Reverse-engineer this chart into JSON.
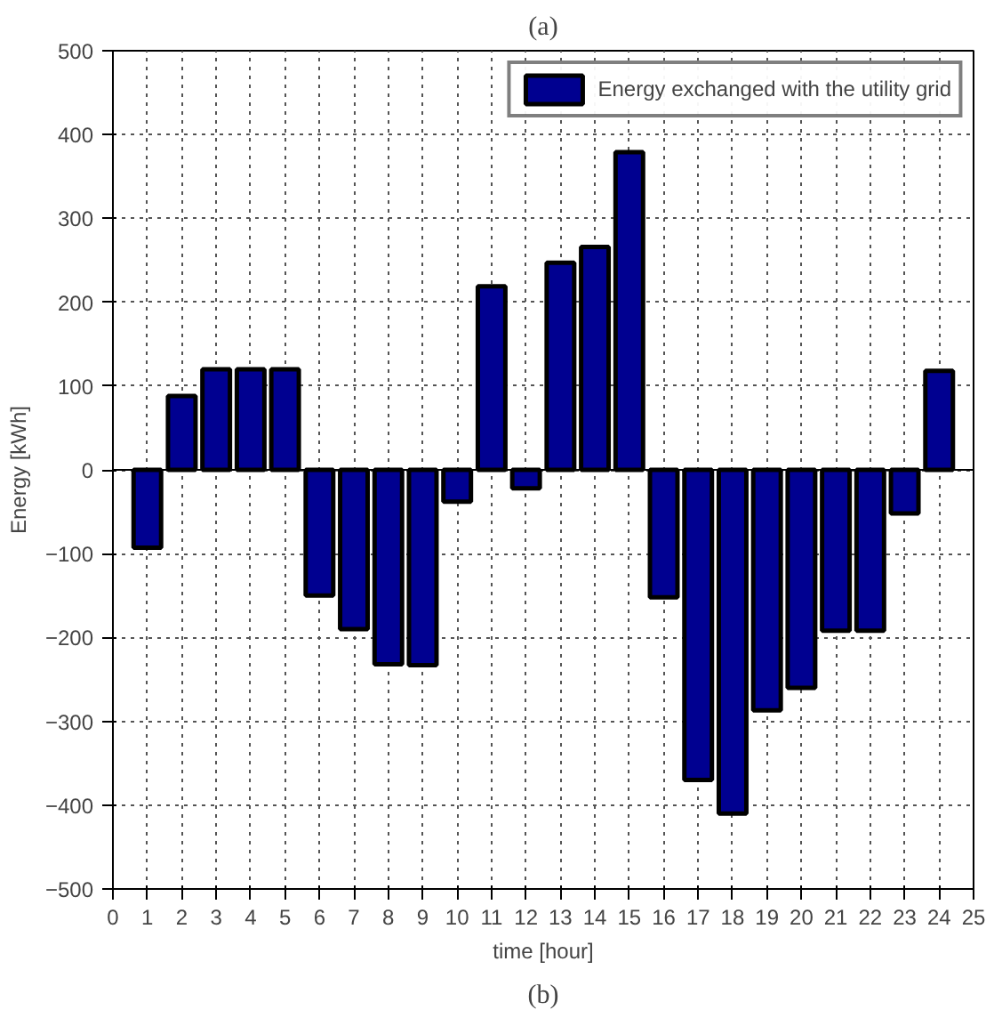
{
  "chart_data": {
    "type": "bar",
    "title": "(a)",
    "annotations": [
      "(b)"
    ],
    "xlabel": "time [hour]",
    "ylabel": "Energy [kWh]",
    "x": [
      1,
      2,
      3,
      4,
      5,
      6,
      7,
      8,
      9,
      10,
      11,
      12,
      13,
      14,
      15,
      16,
      17,
      18,
      19,
      20,
      21,
      22,
      23,
      24
    ],
    "series": [
      {
        "name": "Energy exchanged with the utility grid",
        "color": "#000090",
        "values": [
          -93,
          88,
          120,
          120,
          120,
          -150,
          -190,
          -232,
          -233,
          -38,
          219,
          -22,
          247,
          266,
          379,
          -152,
          -370,
          -410,
          -287,
          -260,
          -192,
          -192,
          -52,
          118
        ]
      }
    ],
    "xlim": [
      0,
      25
    ],
    "xticks": [
      0,
      1,
      2,
      3,
      4,
      5,
      6,
      7,
      8,
      9,
      10,
      11,
      12,
      13,
      14,
      15,
      16,
      17,
      18,
      19,
      20,
      21,
      22,
      23,
      24,
      25
    ],
    "ylim": [
      -500,
      500
    ],
    "yticks": [
      -500,
      -400,
      -300,
      -200,
      -100,
      0,
      100,
      200,
      300,
      400,
      500
    ],
    "ref_lines": [
      {
        "axis": "y",
        "value": 0,
        "color": "#000000"
      }
    ],
    "grid": true,
    "legend": "top right"
  }
}
